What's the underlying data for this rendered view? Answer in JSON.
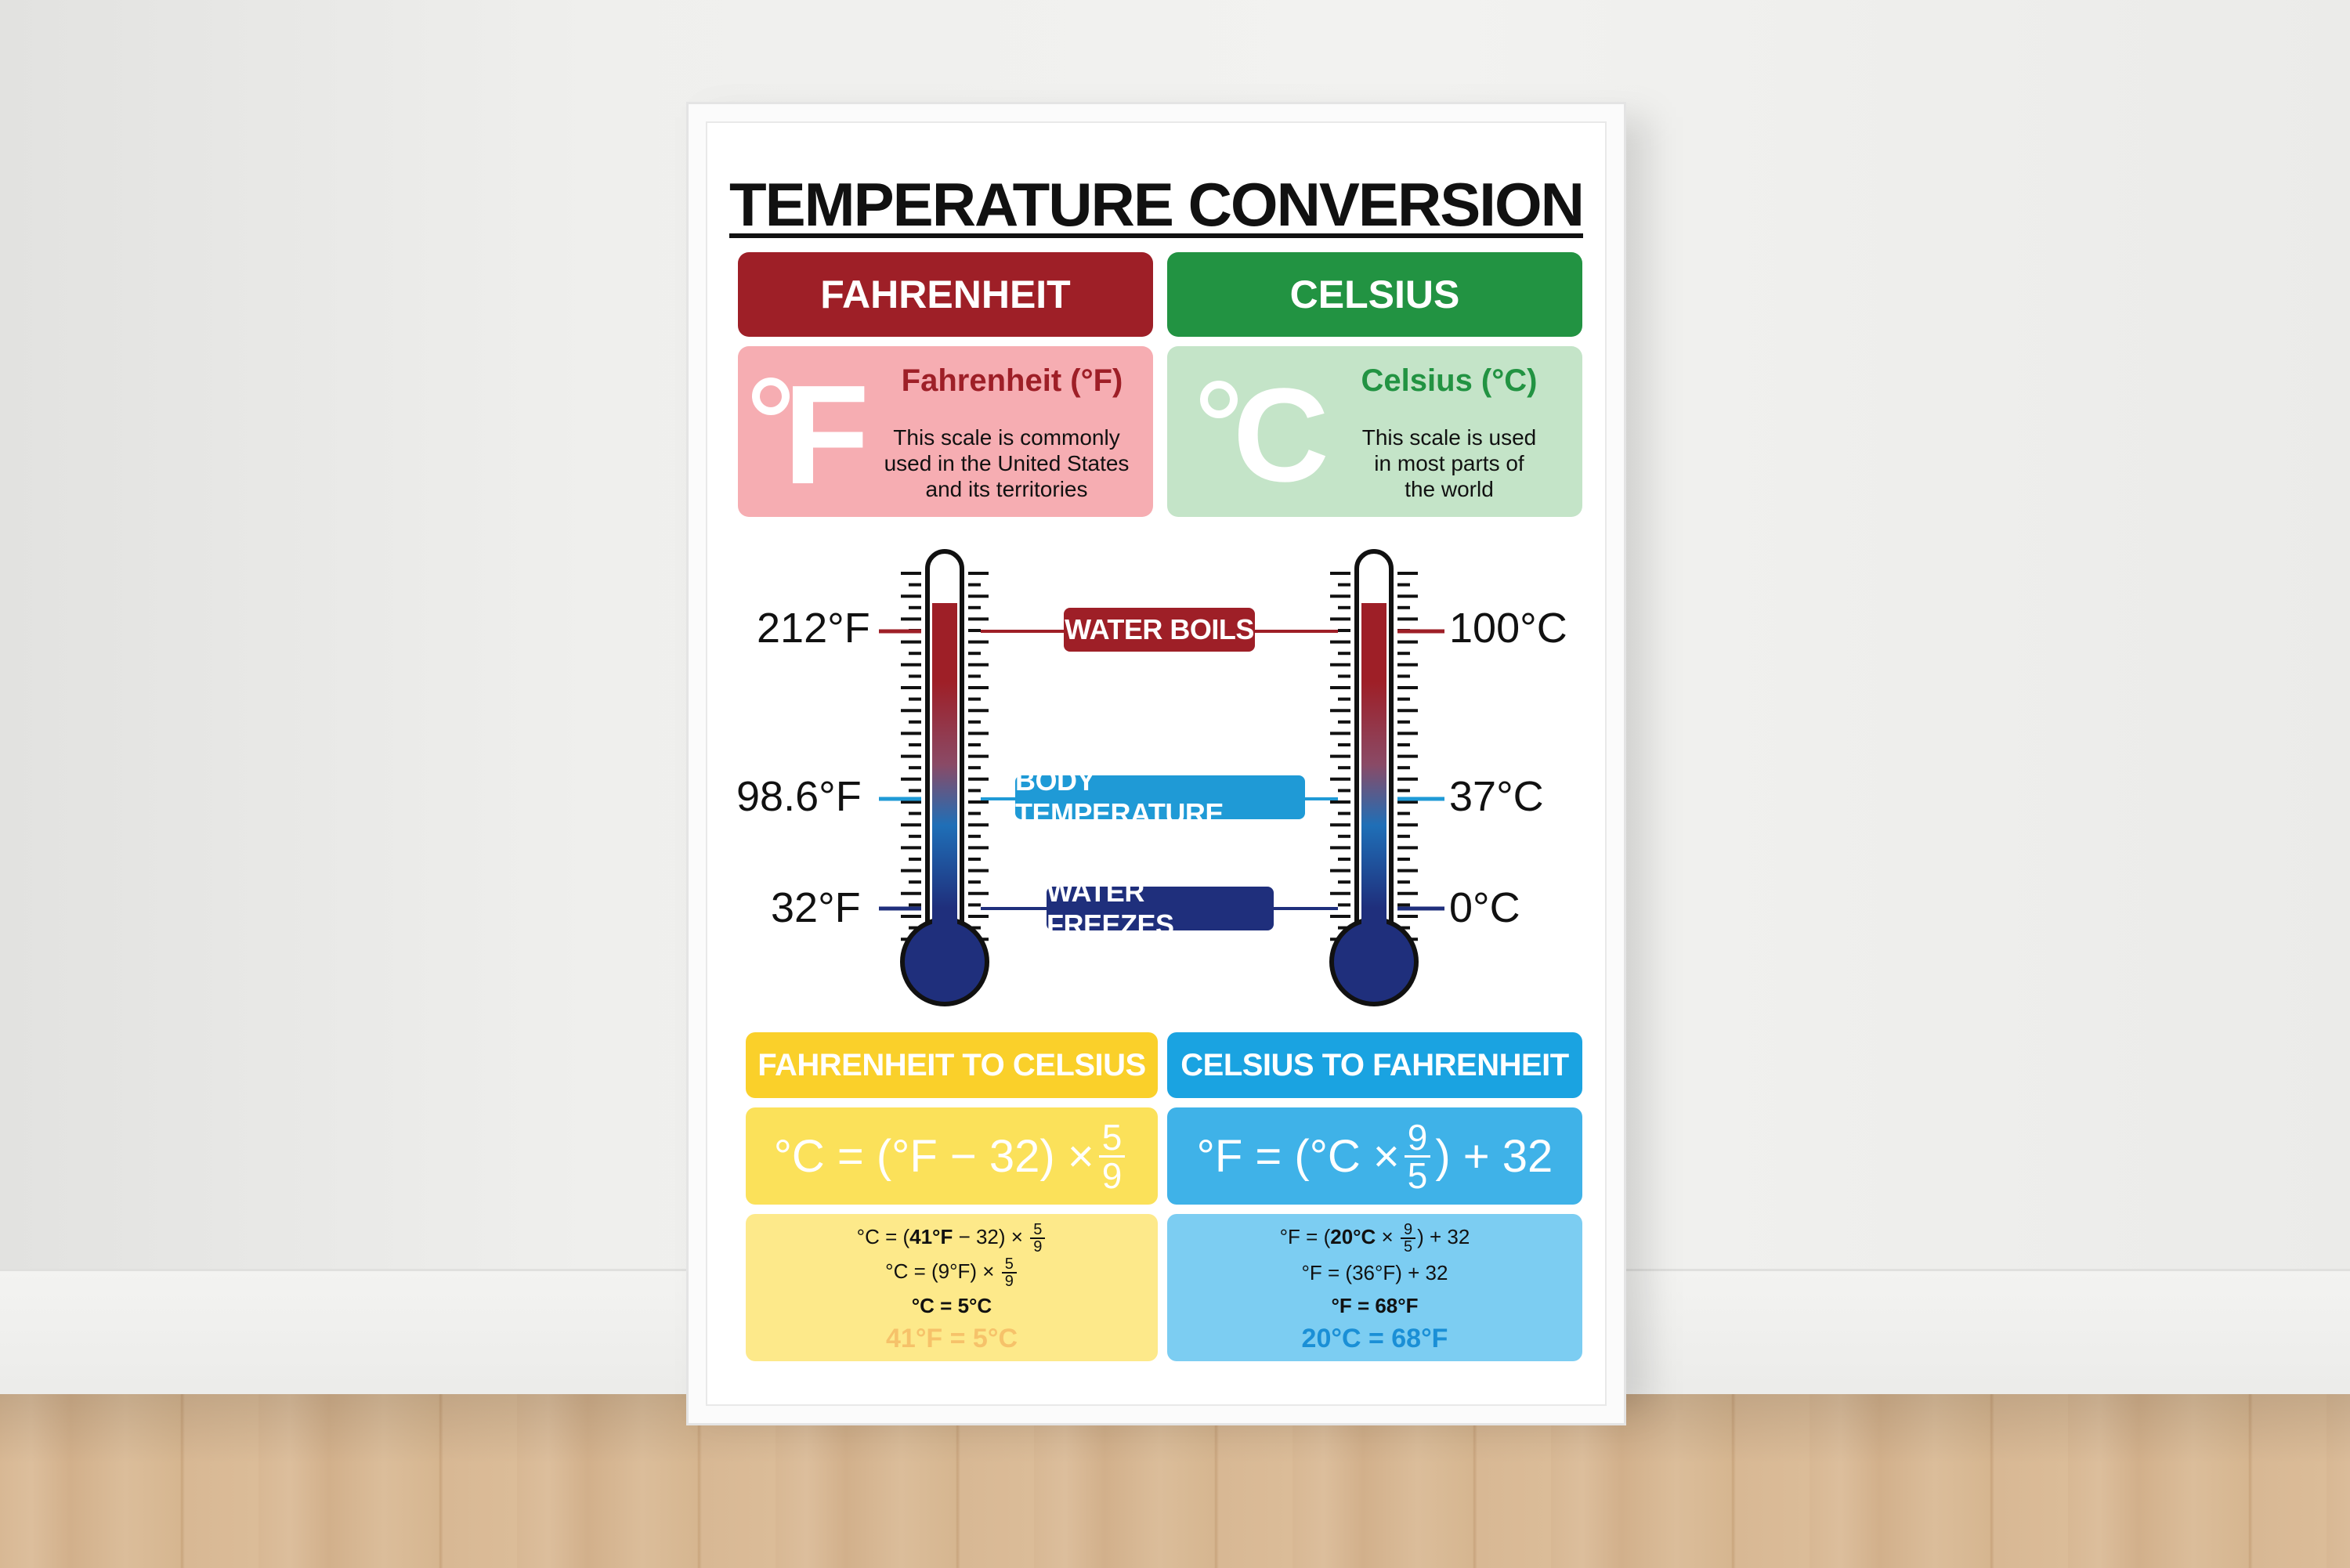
{
  "title": "TEMPERATURE CONVERSION",
  "fahrenheit": {
    "header": "FAHRENHEIT",
    "symbol": "F",
    "name": "Fahrenheit (°F)",
    "desc_lines": [
      "This scale is commonly",
      "used in the United States",
      "and its territories"
    ],
    "color": "#9e1f27",
    "light": "#f6adb2"
  },
  "celsius": {
    "header": "CELSIUS",
    "symbol": "C",
    "name": "Celsius (°C)",
    "desc_lines": [
      "This scale is used",
      "in most parts of",
      "the world"
    ],
    "color": "#229342",
    "light": "#c4e4c8"
  },
  "reference_points": [
    {
      "label": "WATER BOILS",
      "f": "212°F",
      "c": "100°C",
      "color": "#9e1f27"
    },
    {
      "label": "BODY TEMPERATURE",
      "f": "98.6°F",
      "c": "37°C",
      "color": "#1f9ad6"
    },
    {
      "label": "WATER FREEZES",
      "f": "32°F",
      "c": "0°C",
      "color": "#1f2f7c"
    }
  ],
  "f_to_c": {
    "header": "FAHRENHEIT TO CELSIUS",
    "formula_prefix": "°C = (°F − 32) ×",
    "formula_num": "5",
    "formula_den": "9",
    "step1_prefix": "°C = (",
    "step1_bold": "41°F",
    "step1_suffix": " − 32) ×",
    "step2_prefix": "°C = (9°F) ×",
    "frac_num": "5",
    "frac_den": "9",
    "step3": "°C = 5°C",
    "result": "41°F = 5°C",
    "header_color": "#fad02a",
    "formula_color": "#fbe15a",
    "steps_color": "#fde98a",
    "result_color": "#f6c26a"
  },
  "c_to_f": {
    "header": "CELSIUS TO FAHRENHEIT",
    "formula_prefix": "°F = (°C ×",
    "formula_num": "9",
    "formula_den": "5",
    "formula_suffix": ") + 32",
    "step1_prefix": "°F = (",
    "step1_bold": "20°C",
    "step1_mid": " ×",
    "step1_suffix": ") + 32",
    "step2": "°F = (36°F) + 32",
    "frac_num": "9",
    "frac_den": "5",
    "step3": "°F = 68°F",
    "result": "20°C = 68°F",
    "header_color": "#1aa3e1",
    "formula_color": "#3fb2e8",
    "steps_color": "#7ccdf2",
    "result_color": "#1a8fd6"
  }
}
